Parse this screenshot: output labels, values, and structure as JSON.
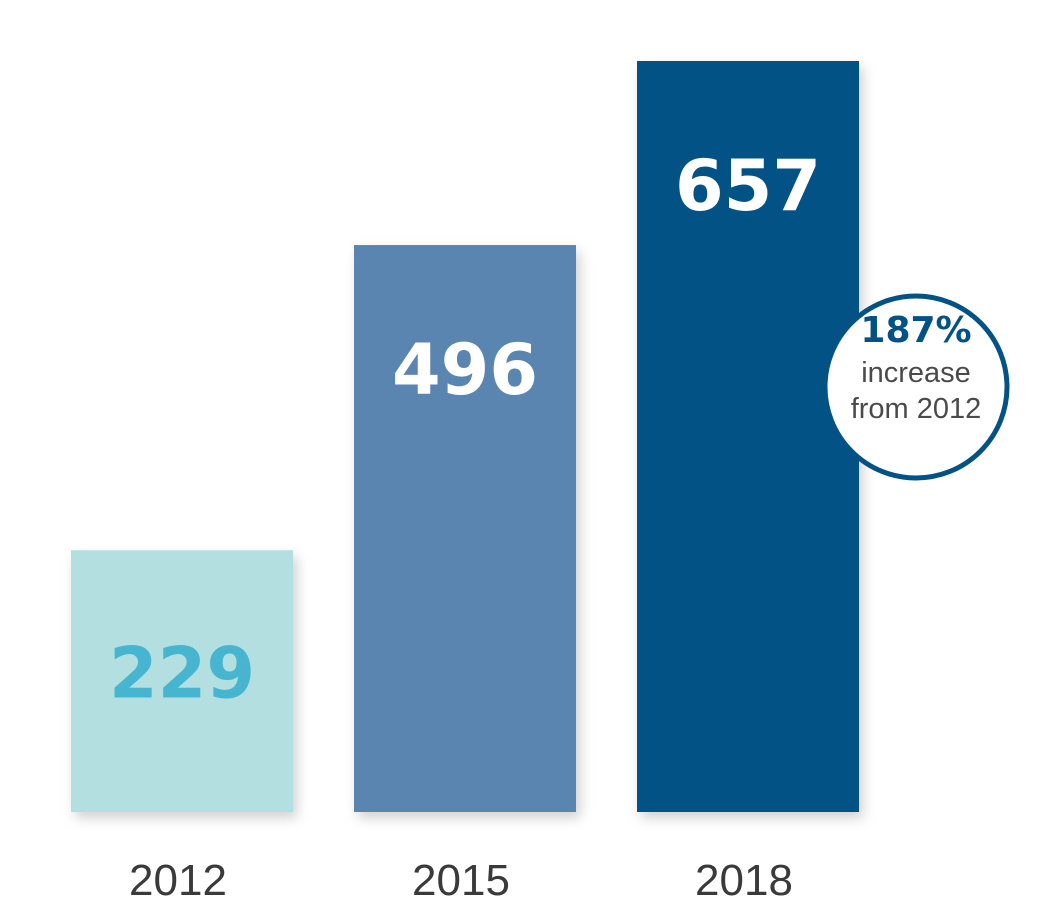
{
  "chart_data": {
    "type": "bar",
    "title": "",
    "xlabel": "",
    "ylabel": "",
    "categories": [
      "2012",
      "2015",
      "2018"
    ],
    "values": [
      229,
      496,
      657
    ],
    "value_labels": [
      "229",
      "496",
      "657"
    ],
    "ylim": [
      0,
      657
    ],
    "grid": false,
    "bar_colors": [
      "#b3dfe0",
      "#5b85b1",
      "#035286"
    ],
    "value_label_colors": [
      "#47b5cf",
      "#ffffff",
      "#ffffff"
    ],
    "annotation": {
      "percent": "187%",
      "line1": "increase",
      "line2": "from 2012",
      "border_color": "#035286",
      "percent_color": "#035286"
    }
  }
}
